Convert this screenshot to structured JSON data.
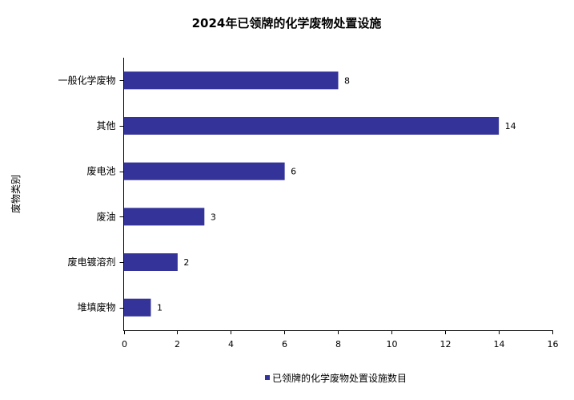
{
  "chart_data": {
    "type": "bar",
    "orientation": "horizontal",
    "title": "2024年已领牌的化学废物处置设施",
    "ylabel": "废物类别",
    "xlabel": "",
    "categories": [
      "一般化学废物",
      "其他",
      "废电池",
      "废油",
      "废电镀溶剂",
      "堆填废物"
    ],
    "series": [
      {
        "name": "已领牌的化学废物处置设施数目",
        "values": [
          8,
          14,
          6,
          3,
          2,
          1
        ]
      }
    ],
    "xlim": [
      0,
      16
    ],
    "xticks": [
      0,
      2,
      4,
      6,
      8,
      10,
      12,
      14,
      16
    ],
    "grid": false,
    "legend": "bottom-center",
    "colors": {
      "bar": "#333399",
      "axis": "#000000"
    }
  }
}
